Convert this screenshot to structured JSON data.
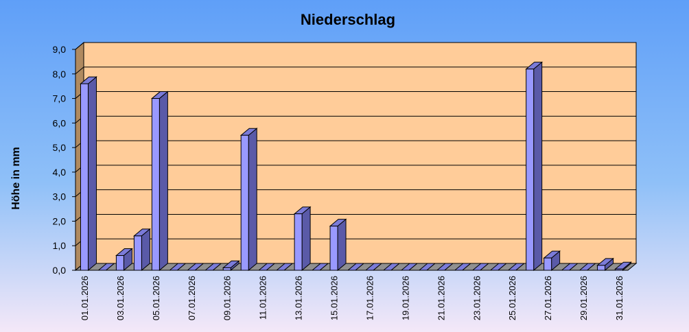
{
  "chart_data": {
    "type": "bar3d",
    "title": "Niederschlag",
    "y_label": "Höhe in mm",
    "categories": [
      "01.01.2026",
      null,
      "03.01.2026",
      null,
      "05.01.2026",
      null,
      "07.01.2026",
      null,
      "09.01.2026",
      null,
      "11.01.2026",
      null,
      "13.01.2026",
      null,
      "15.01.2026",
      null,
      "17.01.2026",
      null,
      "19.01.2026",
      null,
      "21.01.2026",
      null,
      "23.01.2026",
      null,
      "25.01.2026",
      null,
      "27.01.2026",
      null,
      "29.01.2026",
      null,
      "31.01.2026"
    ],
    "values": [
      7.6,
      0,
      0.6,
      1.4,
      7.0,
      0,
      0,
      0,
      0.1,
      5.5,
      0,
      0,
      2.3,
      0,
      1.8,
      0,
      0,
      0,
      0,
      0,
      0,
      0,
      0,
      0,
      0,
      8.2,
      0.5,
      0,
      0,
      0.2,
      0.05
    ],
    "color": "#9999ff",
    "ylim": [
      0,
      9
    ],
    "yticks": [
      {
        "value": 0,
        "label": "0,0"
      },
      {
        "value": 1,
        "label": "1,0"
      },
      {
        "value": 2,
        "label": "2,0"
      },
      {
        "value": 3,
        "label": "3,0"
      },
      {
        "value": 4,
        "label": "4,0"
      },
      {
        "value": 5,
        "label": "5,0"
      },
      {
        "value": 6,
        "label": "6,0"
      },
      {
        "value": 7,
        "label": "7,0"
      },
      {
        "value": 8,
        "label": "8,0"
      },
      {
        "value": 9,
        "label": "9,0"
      }
    ],
    "grid": true
  }
}
